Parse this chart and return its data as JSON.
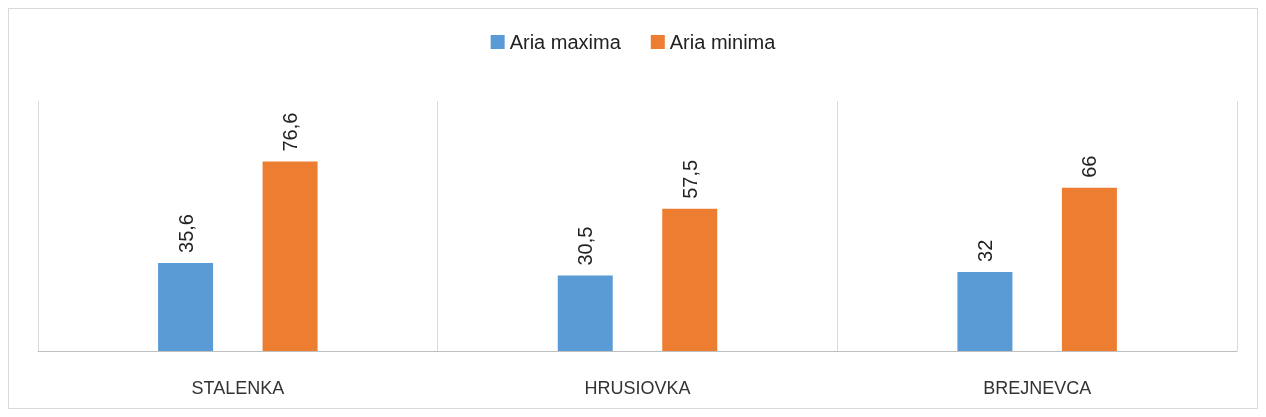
{
  "chart_data": {
    "type": "bar",
    "categories": [
      "STALENKA",
      "HRUSIOVKA",
      "BREJNEVCA"
    ],
    "series": [
      {
        "name": "Aria maxima",
        "color": "#5b9bd5",
        "values": [
          35.6,
          30.5,
          32
        ],
        "value_labels": [
          "35,6",
          "30,5",
          "32"
        ]
      },
      {
        "name": "Aria minima",
        "color": "#ed7d31",
        "values": [
          76.6,
          57.5,
          66
        ],
        "value_labels": [
          "76,6",
          "57,5",
          "66"
        ]
      }
    ],
    "grid": "x",
    "legend": "top"
  }
}
